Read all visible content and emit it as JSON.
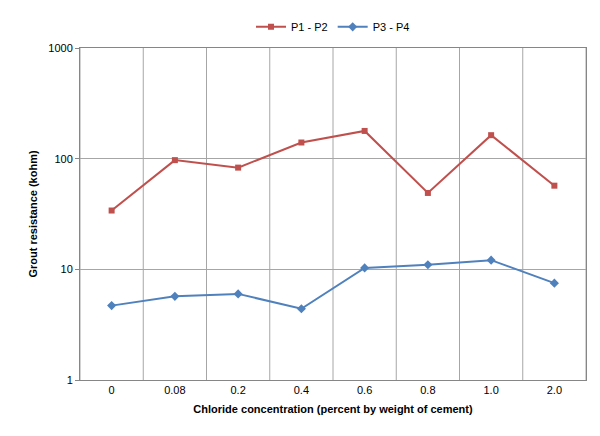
{
  "chart_data": {
    "type": "line",
    "x_label": "Chloride concentration (percent by weight of cement)",
    "y_label": "Grout resistance (kohm)",
    "categories": [
      "0",
      "0.08",
      "0.2",
      "0.4",
      "0.6",
      "0.8",
      "1.0",
      "2.0"
    ],
    "series": [
      {
        "name": "P1 - P2",
        "color": "#c0504d",
        "marker": "square",
        "values": [
          34,
          97,
          83,
          140,
          178,
          49,
          163,
          57
        ]
      },
      {
        "name": "P3 - P4",
        "color": "#4f81bd",
        "marker": "diamond",
        "values": [
          4.7,
          5.7,
          6.0,
          4.4,
          10.3,
          11.0,
          12.1,
          7.5
        ]
      }
    ],
    "log": "y",
    "ylim": [
      1,
      1000
    ],
    "yticks": [
      1,
      10,
      100,
      1000
    ],
    "grid": true,
    "legend": "top"
  }
}
